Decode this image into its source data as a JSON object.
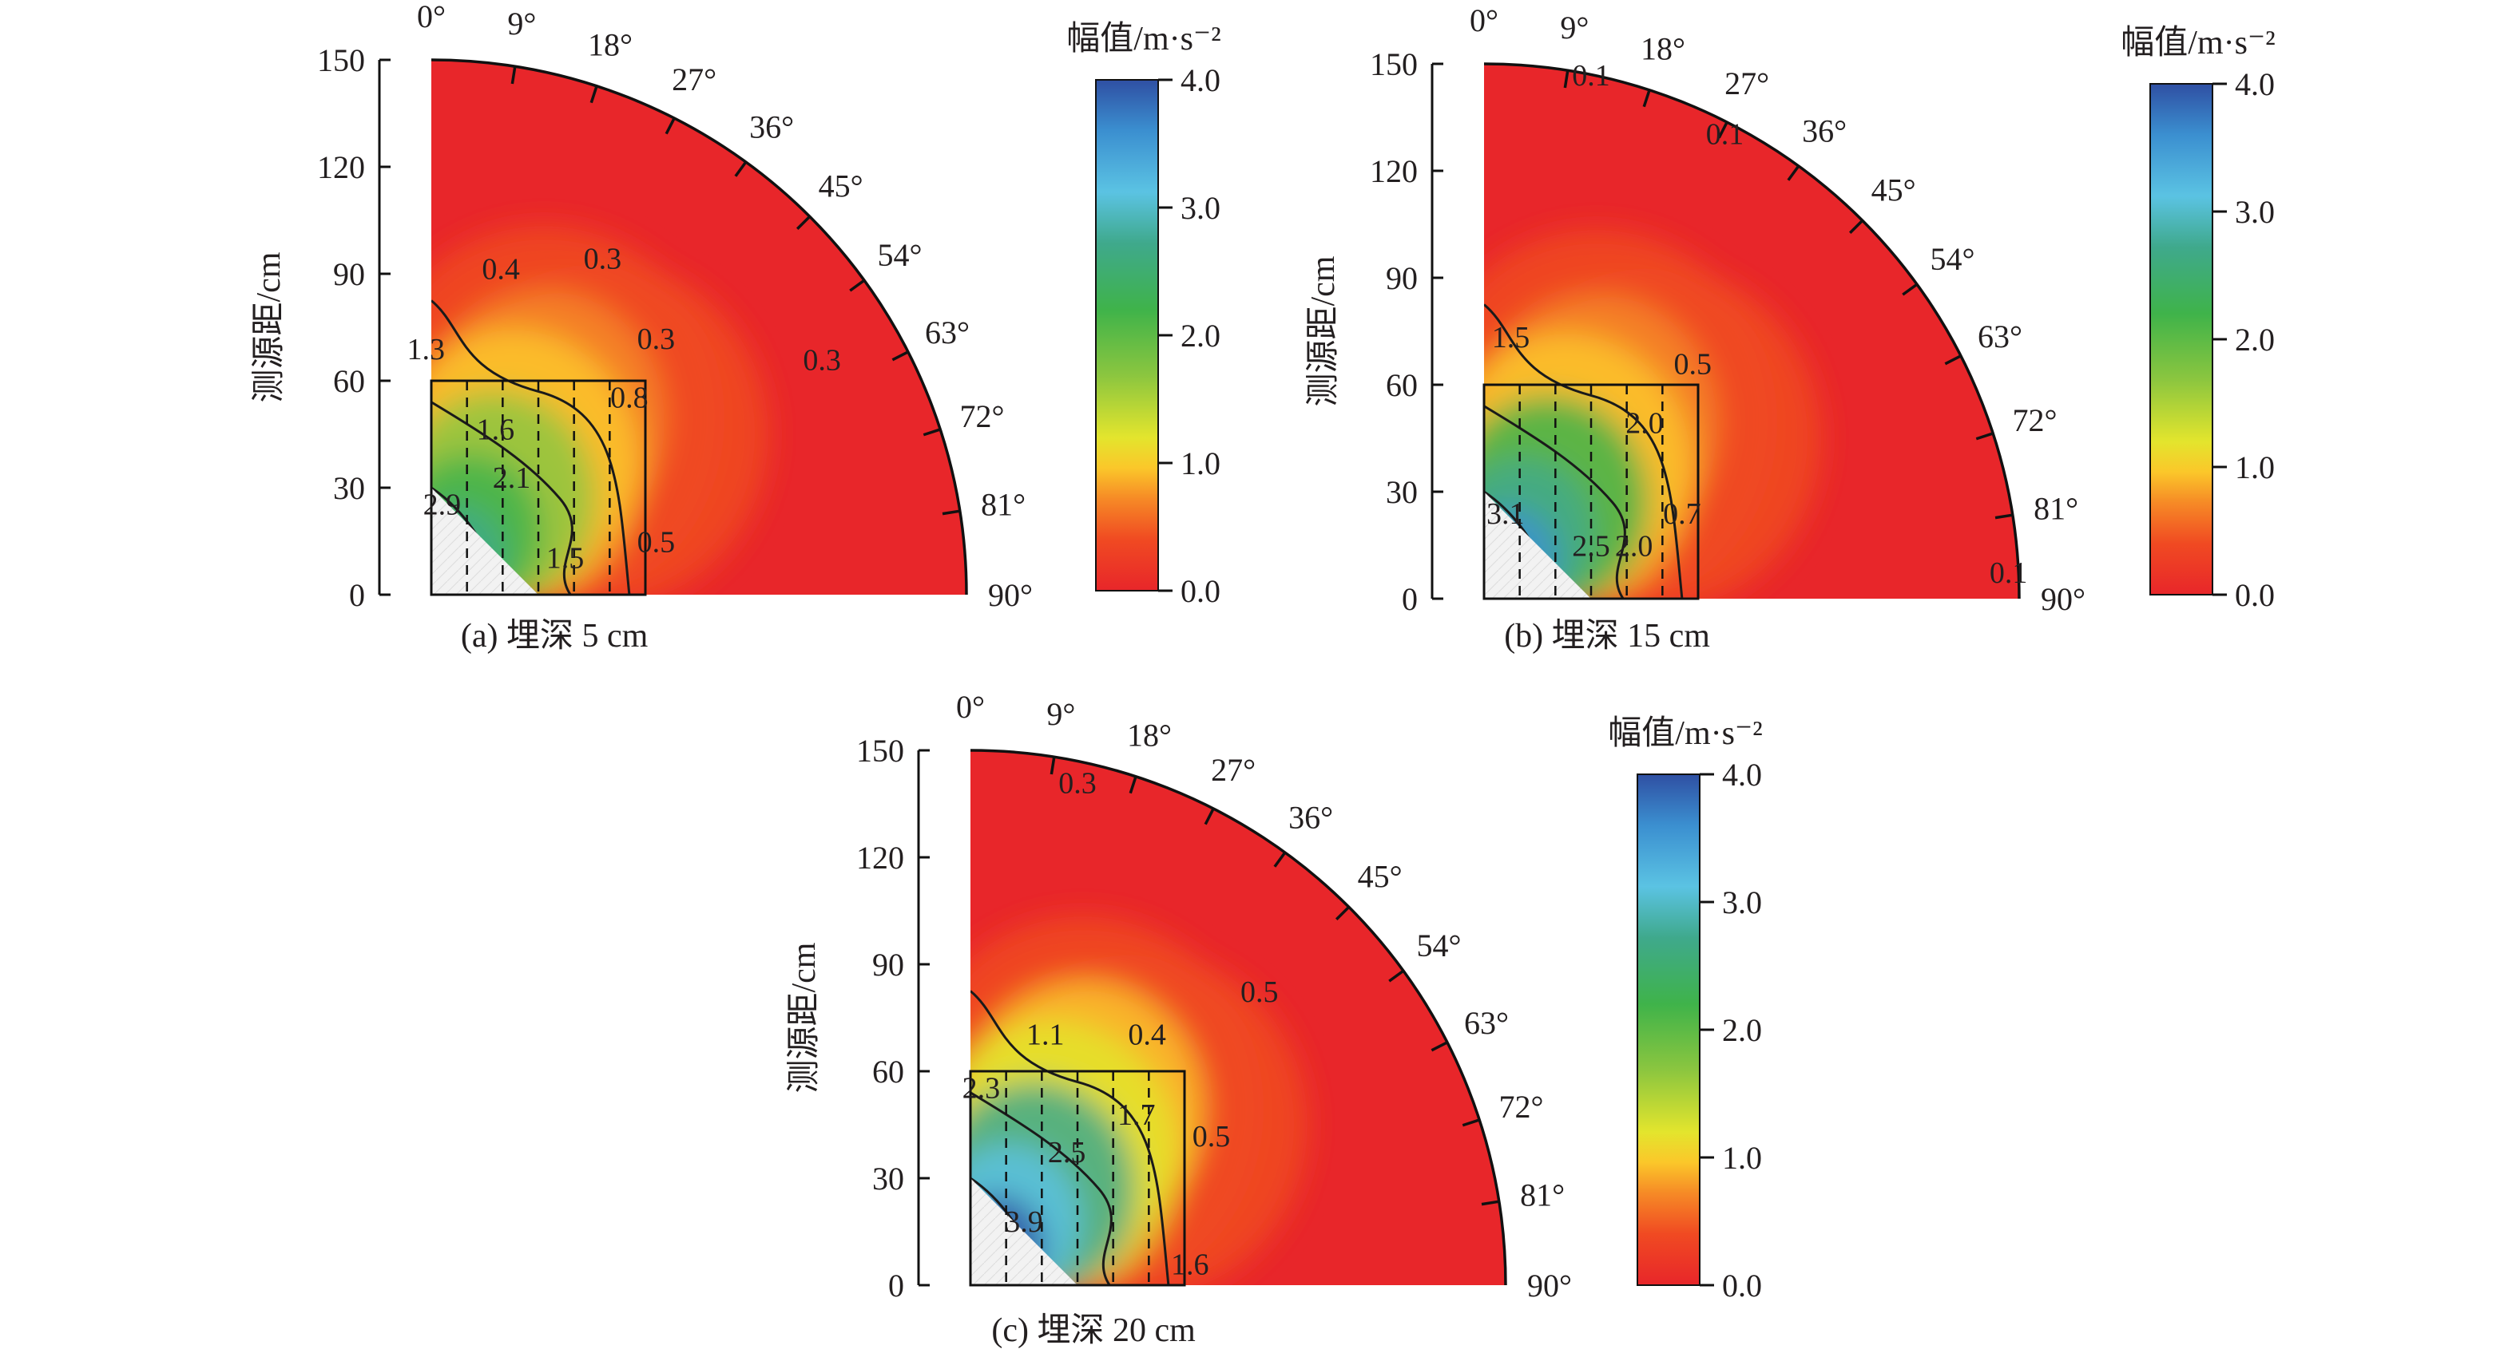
{
  "figure": {
    "ylabel": "测源距/cm",
    "angle_ticks": [
      "0°",
      "9°",
      "18°",
      "27°",
      "36°",
      "45°",
      "54°",
      "63°",
      "72°",
      "81°",
      "90°"
    ],
    "r_ticks": [
      "0",
      "30",
      "60",
      "90",
      "120",
      "150"
    ],
    "colors": {
      "stops": [
        "#e8262a",
        "#f04a22",
        "#f68a26",
        "#fbc72a",
        "#e3e52d",
        "#8cc63f",
        "#3fb34a",
        "#3fa98c",
        "#5bc3e3",
        "#3b8fd0",
        "#2f4fa3"
      ]
    }
  },
  "chart_data": [
    {
      "type": "heatmap",
      "panel": "a",
      "caption": "(a) 埋深 5 cm",
      "colorbar": {
        "title": "幅值/m·s⁻²",
        "ticks": [
          "0.0",
          "1.0",
          "2.0",
          "3.0",
          "4.0"
        ],
        "range": [
          0,
          4
        ]
      },
      "r_range": [
        0,
        150
      ],
      "angle_range": [
        0,
        90
      ],
      "contour_labels": [
        "0.4",
        "0.3",
        "1.3",
        "0.3",
        "0.3",
        "1.6",
        "0.8",
        "2.1",
        "2.9",
        "1.5",
        "0.5"
      ]
    },
    {
      "type": "heatmap",
      "panel": "b",
      "caption": "(b) 埋深 15 cm",
      "colorbar": {
        "title": "幅值/m·s⁻²",
        "ticks": [
          "0.0",
          "1.0",
          "2.0",
          "3.0",
          "4.0"
        ],
        "range": [
          0,
          4
        ]
      },
      "r_range": [
        0,
        150
      ],
      "angle_range": [
        0,
        90
      ],
      "contour_labels": [
        "0.1",
        "0.1",
        "1.5",
        "0.5",
        "2.0",
        "3.1",
        "2.5",
        "2.0",
        "0.7",
        "0.1"
      ]
    },
    {
      "type": "heatmap",
      "panel": "c",
      "caption": "(c) 埋深 20 cm",
      "colorbar": {
        "title": "幅值/m·s⁻²",
        "ticks": [
          "0.0",
          "1.0",
          "2.0",
          "3.0",
          "4.0"
        ],
        "range": [
          0,
          4
        ]
      },
      "r_range": [
        0,
        150
      ],
      "angle_range": [
        0,
        90
      ],
      "contour_labels": [
        "0.3",
        "0.5",
        "1.1",
        "0.4",
        "2.3",
        "2.5",
        "1.7",
        "0.5",
        "3.9",
        "1.6"
      ]
    }
  ]
}
